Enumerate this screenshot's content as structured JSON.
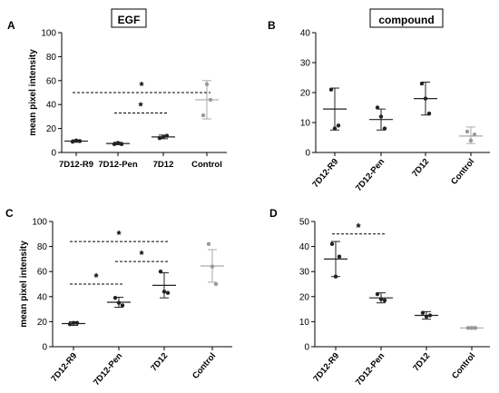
{
  "chart_data": [
    {
      "panel": "A",
      "header": "EGF",
      "type": "scatter",
      "ylabel": "mean pixel intensity",
      "ylim": [
        0,
        100
      ],
      "yticks": [
        0,
        20,
        40,
        60,
        80,
        100
      ],
      "categories": [
        "7D12-R9",
        "7D12-Pen",
        "7D12",
        "Control"
      ],
      "series": [
        {
          "points": [
            9,
            10,
            9.5
          ],
          "mean": 9.5,
          "err": [
            8.5,
            10.5
          ]
        },
        {
          "points": [
            7,
            8,
            7
          ],
          "mean": 7.5,
          "err": [
            6.5,
            8.5
          ]
        },
        {
          "points": [
            12,
            13,
            14
          ],
          "mean": 13,
          "err": [
            11.5,
            14.5
          ]
        },
        {
          "points": [
            31,
            57,
            44
          ],
          "mean": 44,
          "err": [
            28,
            60
          ]
        }
      ],
      "significance": [
        {
          "from": 0,
          "to": 3,
          "y": 50,
          "label": "*"
        },
        {
          "from": 1,
          "to": 2,
          "y": 33,
          "label": "*"
        }
      ]
    },
    {
      "panel": "B",
      "header": "compound",
      "type": "scatter",
      "ylabel": "",
      "ylim": [
        0,
        40
      ],
      "yticks": [
        0,
        10,
        20,
        30,
        40
      ],
      "categories": [
        "7D12-R9",
        "7D12-Pen",
        "7D12",
        "Control"
      ],
      "series": [
        {
          "points": [
            21,
            8,
            9
          ],
          "mean": 14.5,
          "err": [
            7.5,
            21.5
          ]
        },
        {
          "points": [
            15,
            12,
            8
          ],
          "mean": 11,
          "err": [
            7.5,
            14.5
          ]
        },
        {
          "points": [
            23,
            18,
            13
          ],
          "mean": 18,
          "err": [
            12.5,
            23.5
          ]
        },
        {
          "points": [
            7,
            4,
            6
          ],
          "mean": 5.5,
          "err": [
            3,
            8.5
          ]
        }
      ],
      "significance": []
    },
    {
      "panel": "C",
      "header": "",
      "type": "scatter",
      "ylabel": "mean pixel intensity",
      "ylim": [
        0,
        100
      ],
      "yticks": [
        0,
        20,
        40,
        60,
        80,
        100
      ],
      "categories": [
        "7D12-R9",
        "7D12-Pen",
        "7D12",
        "Control"
      ],
      "series": [
        {
          "points": [
            18,
            19,
            19
          ],
          "mean": 18.5,
          "err": [
            17,
            20
          ]
        },
        {
          "points": [
            39,
            35,
            33
          ],
          "mean": 35.5,
          "err": [
            31.5,
            39.5
          ]
        },
        {
          "points": [
            60,
            44,
            43
          ],
          "mean": 49,
          "err": [
            39,
            59
          ]
        },
        {
          "points": [
            82,
            64,
            50
          ],
          "mean": 64.5,
          "err": [
            51.5,
            77.5
          ]
        }
      ],
      "significance": [
        {
          "from": 0,
          "to": 2,
          "y": 84,
          "label": "*"
        },
        {
          "from": 1,
          "to": 2,
          "y": 68,
          "label": "*"
        },
        {
          "from": 0,
          "to": 1,
          "y": 50,
          "label": "*"
        }
      ]
    },
    {
      "panel": "D",
      "header": "",
      "type": "scatter",
      "ylabel": "",
      "ylim": [
        0,
        50
      ],
      "yticks": [
        0,
        10,
        20,
        30,
        40,
        50
      ],
      "categories": [
        "7D12-R9",
        "7D12-Pen",
        "7D12",
        "Control"
      ],
      "series": [
        {
          "points": [
            41,
            28,
            36
          ],
          "mean": 35,
          "err": [
            28,
            42
          ]
        },
        {
          "points": [
            21,
            19,
            18.5
          ],
          "mean": 19.5,
          "err": [
            17.5,
            21.5
          ]
        },
        {
          "points": [
            13.5,
            12,
            12.5
          ],
          "mean": 12.5,
          "err": [
            11,
            14
          ]
        },
        {
          "points": [
            7.5,
            7.5,
            7.5
          ],
          "mean": 7.5,
          "err": [
            7,
            8
          ]
        }
      ],
      "significance": [
        {
          "from": 0,
          "to": 1,
          "y": 45,
          "label": "*"
        }
      ]
    }
  ]
}
